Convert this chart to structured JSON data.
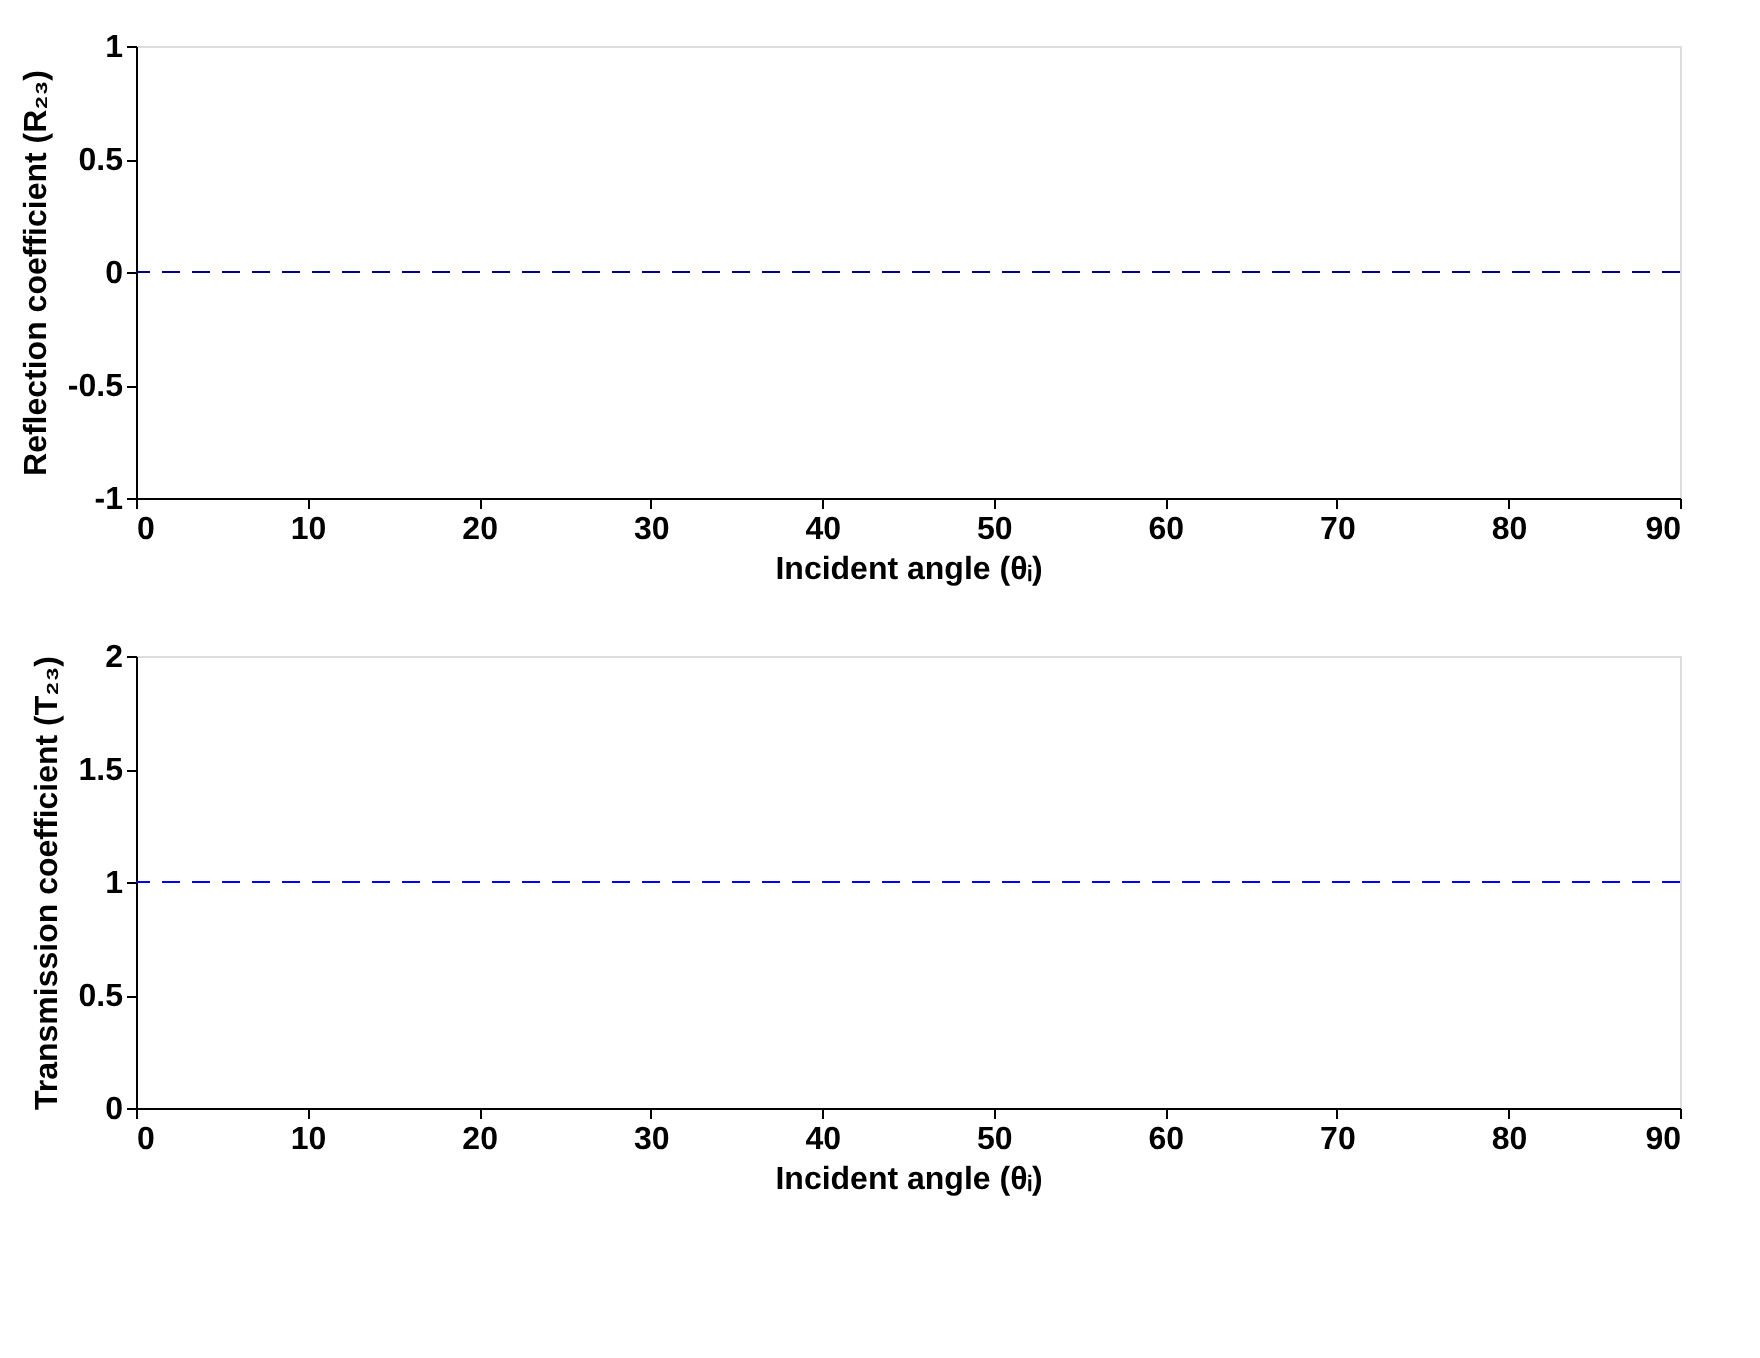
{
  "chart_data": [
    {
      "type": "line",
      "xlabel": "Incident angle (θᵢ)",
      "ylabel": "Reflection coefficient (R₂₃)",
      "ref_lines": [
        {
          "axis": "y",
          "value": 0,
          "color": "#00008b",
          "line_style": "dashed"
        }
      ],
      "xlim": [
        0,
        90
      ],
      "xticks": [
        0,
        10,
        20,
        30,
        40,
        50,
        60,
        70,
        80,
        90
      ],
      "ylim": [
        -1,
        1
      ],
      "yticks": [
        -1,
        -0.5,
        0,
        0.5,
        1
      ],
      "grid": false
    },
    {
      "type": "line",
      "xlabel": "Incident angle (θᵢ)",
      "ylabel": "Transmission coefficient (T₂₃)",
      "ref_lines": [
        {
          "axis": "y",
          "value": 1,
          "color": "#0000ff",
          "line_style": "dashed"
        }
      ],
      "xlim": [
        0,
        90
      ],
      "xticks": [
        0,
        10,
        20,
        30,
        40,
        50,
        60,
        70,
        80,
        90
      ],
      "ylim": [
        0,
        2
      ],
      "yticks": [
        0,
        0.5,
        1,
        1.5,
        2
      ],
      "grid": false
    }
  ]
}
